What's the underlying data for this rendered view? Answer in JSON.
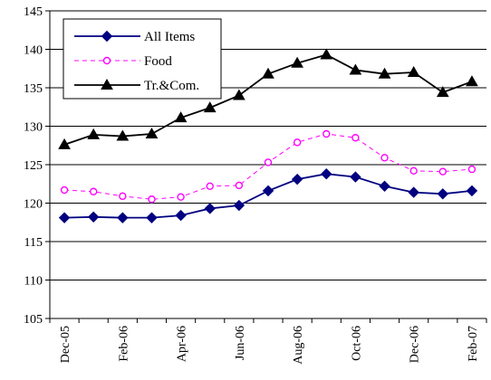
{
  "chart_data": {
    "type": "line",
    "title": "",
    "xlabel": "",
    "ylabel": "",
    "categories": [
      "Dec-05",
      "Jan-06",
      "Feb-06",
      "Mar-06",
      "Apr-06",
      "May-06",
      "Jun-06",
      "Jul-06",
      "Aug-06",
      "Sep-06",
      "Oct-06",
      "Nov-06",
      "Dec-06",
      "Jan-07",
      "Feb-07"
    ],
    "x_tick_labels": [
      "Dec-05",
      "Feb-06",
      "Apr-06",
      "Jun-06",
      "Aug-06",
      "Oct-06",
      "Dec-06",
      "Feb-07"
    ],
    "ylim": [
      105,
      145
    ],
    "y_ticks": [
      105,
      110,
      115,
      120,
      125,
      130,
      135,
      140,
      145
    ],
    "grid": true,
    "legend_position": "top-left",
    "series": [
      {
        "name": "All Items",
        "color": "#000080",
        "marker": "diamond",
        "line_style": "solid",
        "values": [
          118.1,
          118.2,
          118.1,
          118.1,
          118.4,
          119.3,
          119.7,
          121.6,
          123.1,
          123.8,
          123.4,
          122.2,
          121.4,
          121.2,
          121.6
        ]
      },
      {
        "name": "Food",
        "color": "#ff00ff",
        "marker": "circle-open",
        "line_style": "dashed",
        "values": [
          121.7,
          121.5,
          120.9,
          120.5,
          120.8,
          122.2,
          122.3,
          125.3,
          127.9,
          129.0,
          128.5,
          125.9,
          124.2,
          124.1,
          124.4
        ]
      },
      {
        "name": "Tr.&Com.",
        "color": "#000000",
        "marker": "triangle",
        "line_style": "solid",
        "values": [
          127.6,
          128.9,
          128.7,
          129.0,
          131.1,
          132.4,
          134.0,
          136.8,
          138.2,
          139.3,
          137.3,
          136.8,
          137.0,
          134.4,
          135.8
        ]
      }
    ]
  }
}
